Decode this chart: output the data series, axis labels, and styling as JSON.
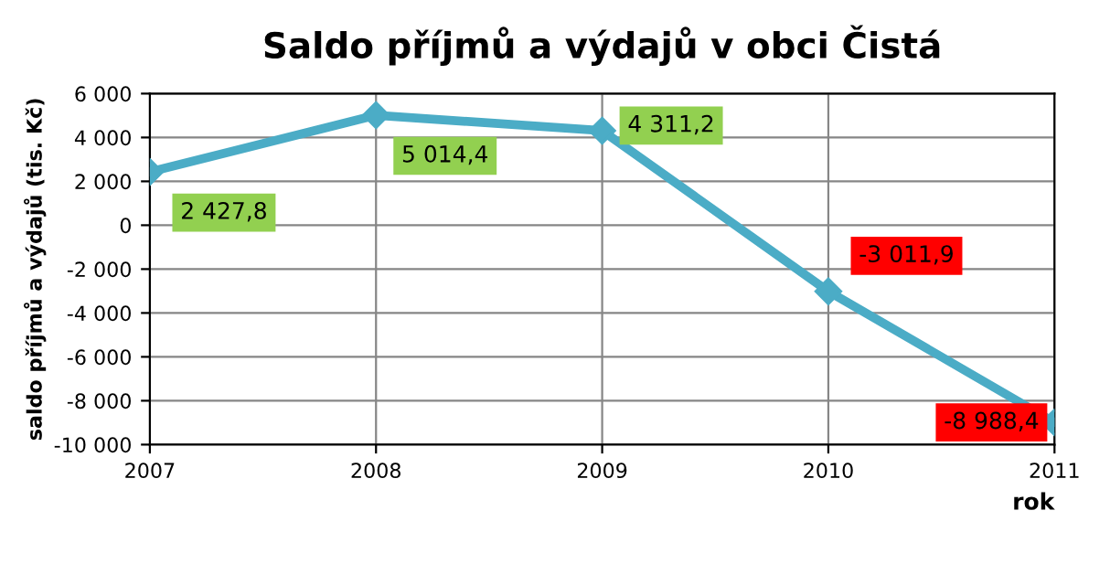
{
  "chart_data": {
    "type": "line",
    "title": "Saldo příjmů a výdajů v obci Čistá",
    "xlabel": "rok",
    "ylabel": "saldo příjmů a výdajů (tis. Kč)",
    "x": [
      2007,
      2008,
      2009,
      2010,
      2011
    ],
    "series": [
      {
        "color": "#4bacc6",
        "values": [
          2427.8,
          5014.4,
          4311.2,
          -3011.9,
          -8988.4
        ],
        "value_labels": [
          "2 427,8",
          "5 014,4",
          "4 311,2",
          "-3 011,9",
          "-8 988,4"
        ]
      }
    ],
    "xlim": [
      2007,
      2011
    ],
    "xticks": [
      2007,
      2008,
      2009,
      2010,
      2011
    ],
    "ylim": [
      -10000,
      6000
    ],
    "yticks": [
      {
        "value": -10000,
        "label": "-10 000"
      },
      {
        "value": -8000,
        "label": "-8 000"
      },
      {
        "value": -6000,
        "label": "-6 000"
      },
      {
        "value": -4000,
        "label": "-4 000"
      },
      {
        "value": -2000,
        "label": "-2 000"
      },
      0,
      {
        "value": 2000,
        "label": "2 000"
      },
      {
        "value": 4000,
        "label": "4 000"
      },
      {
        "value": 6000,
        "label": "6 000"
      }
    ],
    "grid": true,
    "legend": false,
    "marker": "diamond",
    "line_style": "solid"
  }
}
